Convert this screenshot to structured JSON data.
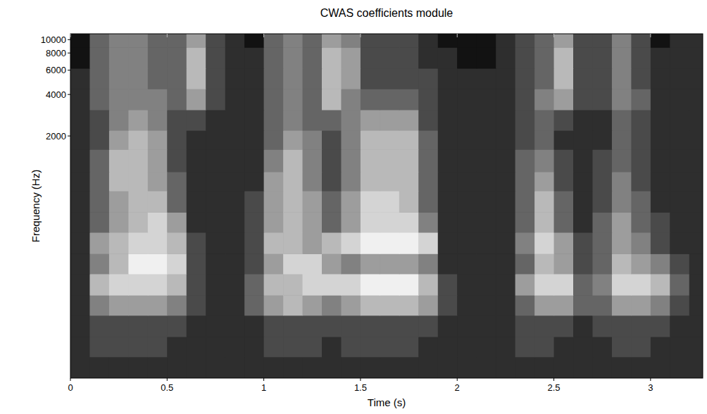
{
  "chart_data": {
    "type": "heatmap",
    "title": "CWAS coefficients module",
    "x_label": "Time (s)",
    "y_label": "Frequency (Hz)",
    "log": "y",
    "grid": false,
    "xlim": [
      0,
      3.27
    ],
    "ylim": [
      35,
      11025
    ],
    "xticks": [
      0,
      0.5,
      1,
      1.5,
      2,
      2.5,
      3
    ],
    "yticks": [
      2000,
      4000,
      6000,
      8000,
      10000
    ],
    "x_edges": [
      0,
      0.1,
      0.2,
      0.3,
      0.4,
      0.5,
      0.6,
      0.7,
      0.8,
      0.9,
      1.0,
      1.1,
      1.2,
      1.3,
      1.4,
      1.5,
      1.6,
      1.7,
      1.8,
      1.9,
      2.0,
      2.1,
      2.2,
      2.3,
      2.4,
      2.5,
      2.6,
      2.7,
      2.8,
      2.9,
      3.0,
      3.1,
      3.2,
      3.3
    ],
    "y_edges": [
      35,
      50,
      70,
      100,
      140,
      200,
      280,
      400,
      560,
      800,
      1100,
      1600,
      2200,
      3100,
      4400,
      6200,
      8800,
      11025
    ],
    "values": [
      [
        1,
        1,
        1,
        1,
        1,
        1,
        1,
        1,
        1,
        1,
        1,
        1,
        1,
        1,
        1,
        1,
        1,
        1,
        1,
        1,
        1,
        1,
        1,
        1,
        1,
        1,
        1,
        1,
        1,
        1,
        1,
        1,
        1
      ],
      [
        1,
        2,
        2,
        2,
        2,
        1,
        1,
        1,
        1,
        1,
        2,
        2,
        2,
        1,
        2,
        2,
        2,
        2,
        1,
        1,
        1,
        1,
        1,
        2,
        2,
        1,
        1,
        1,
        2,
        2,
        1,
        1,
        1
      ],
      [
        1,
        2,
        2,
        2,
        2,
        2,
        1,
        1,
        1,
        1,
        2,
        2,
        2,
        2,
        2,
        2,
        2,
        2,
        2,
        1,
        1,
        1,
        1,
        2,
        2,
        2,
        1,
        2,
        2,
        2,
        2,
        1,
        1
      ],
      [
        1,
        4,
        5,
        5,
        5,
        4,
        2,
        1,
        1,
        3,
        5,
        6,
        5,
        4,
        5,
        6,
        6,
        6,
        5,
        2,
        1,
        1,
        1,
        3,
        5,
        5,
        3,
        3,
        5,
        5,
        4,
        2,
        1
      ],
      [
        1,
        6,
        7,
        7,
        7,
        6,
        2,
        1,
        1,
        3,
        6,
        6,
        7,
        7,
        7,
        8,
        8,
        8,
        6,
        2,
        1,
        1,
        1,
        5,
        7,
        7,
        3,
        4,
        7,
        7,
        6,
        3,
        1
      ],
      [
        1,
        4,
        6,
        8,
        8,
        7,
        2,
        1,
        1,
        2,
        5,
        7,
        7,
        5,
        4,
        5,
        5,
        5,
        4,
        1,
        1,
        1,
        1,
        3,
        6,
        5,
        2,
        3,
        6,
        5,
        4,
        2,
        1
      ],
      [
        1,
        5,
        6,
        7,
        7,
        6,
        2,
        1,
        1,
        2,
        6,
        6,
        5,
        6,
        7,
        8,
        8,
        8,
        7,
        1,
        1,
        1,
        1,
        4,
        7,
        5,
        2,
        3,
        5,
        4,
        2,
        1,
        1
      ],
      [
        1,
        3,
        5,
        6,
        7,
        5,
        1,
        1,
        1,
        2,
        5,
        6,
        5,
        3,
        5,
        7,
        7,
        7,
        4,
        1,
        1,
        1,
        1,
        3,
        6,
        3,
        1,
        3,
        5,
        3,
        2,
        1,
        1
      ],
      [
        1,
        3,
        5,
        6,
        6,
        3,
        1,
        1,
        1,
        2,
        5,
        6,
        5,
        3,
        5,
        7,
        7,
        6,
        3,
        1,
        1,
        1,
        1,
        3,
        6,
        3,
        1,
        2,
        4,
        3,
        1,
        1,
        1
      ],
      [
        1,
        3,
        6,
        6,
        5,
        3,
        1,
        1,
        1,
        1,
        5,
        6,
        4,
        2,
        4,
        6,
        6,
        6,
        3,
        1,
        1,
        1,
        1,
        3,
        5,
        2,
        1,
        2,
        4,
        2,
        1,
        1,
        1
      ],
      [
        1,
        3,
        6,
        6,
        5,
        2,
        1,
        1,
        1,
        1,
        4,
        6,
        4,
        2,
        4,
        6,
        6,
        6,
        3,
        1,
        1,
        1,
        1,
        3,
        4,
        2,
        1,
        2,
        3,
        2,
        1,
        1,
        1
      ],
      [
        1,
        2,
        5,
        6,
        5,
        2,
        1,
        1,
        1,
        1,
        3,
        5,
        4,
        2,
        4,
        6,
        6,
        6,
        3,
        1,
        1,
        1,
        1,
        2,
        3,
        1,
        1,
        1,
        3,
        2,
        1,
        1,
        1
      ],
      [
        1,
        2,
        4,
        5,
        4,
        2,
        2,
        1,
        1,
        1,
        3,
        4,
        3,
        3,
        4,
        5,
        5,
        5,
        2,
        1,
        1,
        1,
        1,
        2,
        3,
        2,
        1,
        1,
        3,
        2,
        1,
        1,
        1
      ],
      [
        1,
        3,
        4,
        4,
        4,
        3,
        5,
        2,
        1,
        1,
        3,
        4,
        3,
        6,
        4,
        3,
        3,
        3,
        2,
        1,
        1,
        1,
        1,
        2,
        4,
        5,
        2,
        2,
        4,
        3,
        1,
        1,
        1
      ],
      [
        1,
        3,
        4,
        4,
        3,
        3,
        6,
        2,
        1,
        1,
        3,
        4,
        3,
        6,
        5,
        2,
        2,
        2,
        2,
        1,
        1,
        1,
        1,
        2,
        3,
        6,
        2,
        2,
        4,
        2,
        1,
        1,
        1
      ],
      [
        0,
        3,
        4,
        4,
        3,
        3,
        6,
        2,
        1,
        1,
        3,
        4,
        3,
        6,
        5,
        2,
        2,
        2,
        1,
        1,
        0,
        0,
        1,
        2,
        3,
        6,
        2,
        2,
        4,
        2,
        1,
        1,
        1
      ],
      [
        0,
        3,
        4,
        4,
        3,
        3,
        5,
        2,
        1,
        0,
        3,
        4,
        3,
        5,
        4,
        2,
        2,
        2,
        1,
        0,
        0,
        0,
        1,
        2,
        3,
        5,
        2,
        2,
        4,
        2,
        0,
        1,
        1
      ]
    ]
  }
}
